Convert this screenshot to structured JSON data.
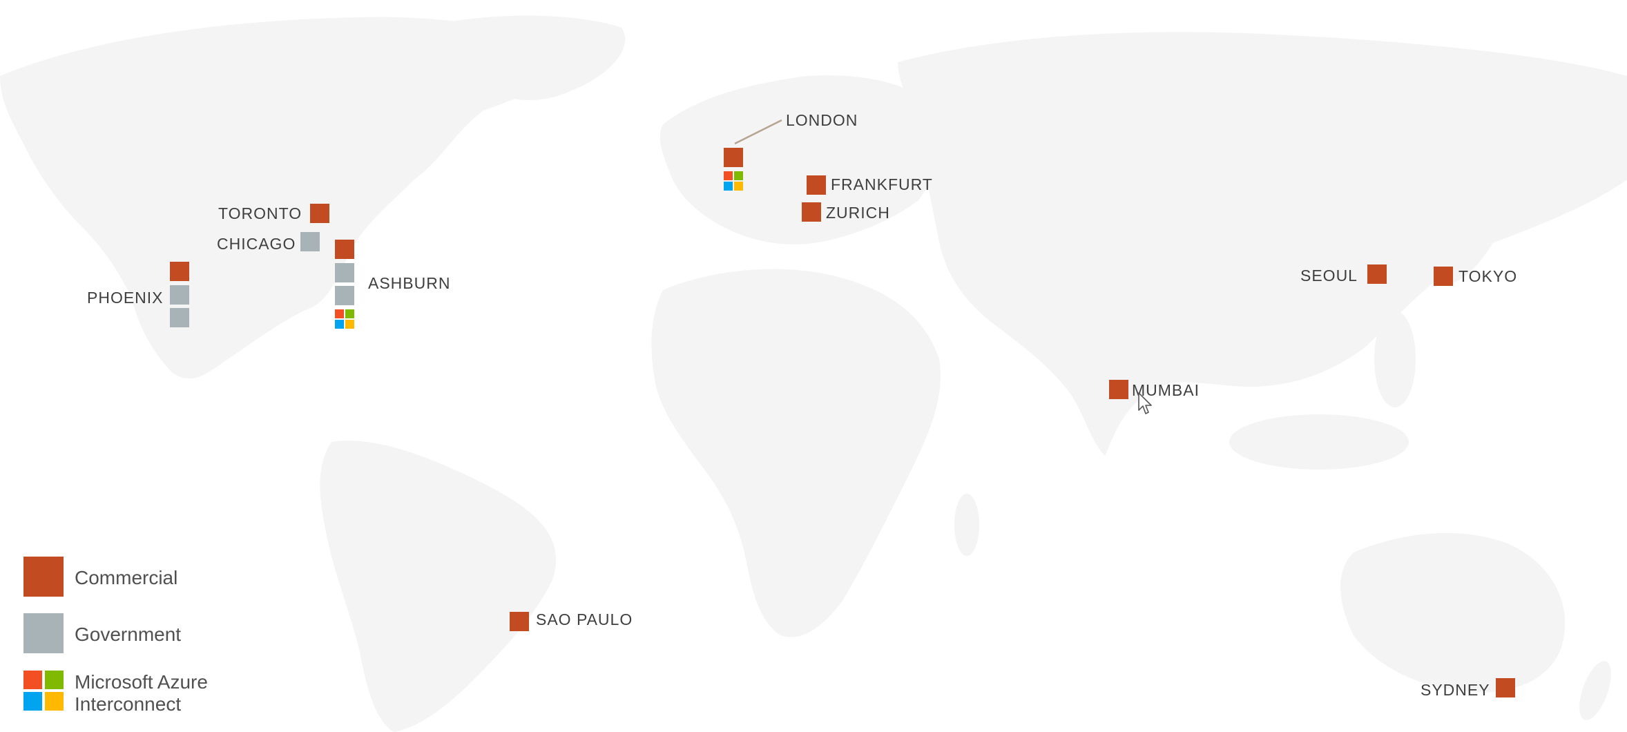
{
  "colors": {
    "commercial": "#c24b22",
    "government": "#a7b3b7",
    "azure_red": "#f25022",
    "azure_green": "#7fba00",
    "azure_blue": "#00a4ef",
    "azure_yellow": "#ffb900",
    "land": "#f4f4f4"
  },
  "regions": {
    "london": {
      "label": "LONDON",
      "markers": [
        "commercial",
        "azure"
      ]
    },
    "frankfurt": {
      "label": "FRANKFURT",
      "markers": [
        "commercial"
      ]
    },
    "zurich": {
      "label": "ZURICH",
      "markers": [
        "commercial"
      ]
    },
    "toronto": {
      "label": "TORONTO",
      "markers": [
        "commercial"
      ]
    },
    "chicago": {
      "label": "CHICAGO",
      "markers": [
        "government"
      ]
    },
    "ashburn": {
      "label": "ASHBURN",
      "markers": [
        "commercial",
        "government",
        "government",
        "azure"
      ]
    },
    "phoenix": {
      "label": "PHOENIX",
      "markers": [
        "commercial",
        "government",
        "government"
      ]
    },
    "seoul": {
      "label": "SEOUL",
      "markers": [
        "commercial"
      ]
    },
    "tokyo": {
      "label": "TOKYO",
      "markers": [
        "commercial"
      ]
    },
    "mumbai": {
      "label": "MUMBAI",
      "markers": [
        "commercial"
      ]
    },
    "sao_paulo": {
      "label": "SAO PAULO",
      "markers": [
        "commercial"
      ]
    },
    "sydney": {
      "label": "SYDNEY",
      "markers": [
        "commercial"
      ]
    }
  },
  "legend": {
    "commercial": "Commercial",
    "government": "Government",
    "azure_line1": "Microsoft Azure",
    "azure_line2": "Interconnect"
  }
}
